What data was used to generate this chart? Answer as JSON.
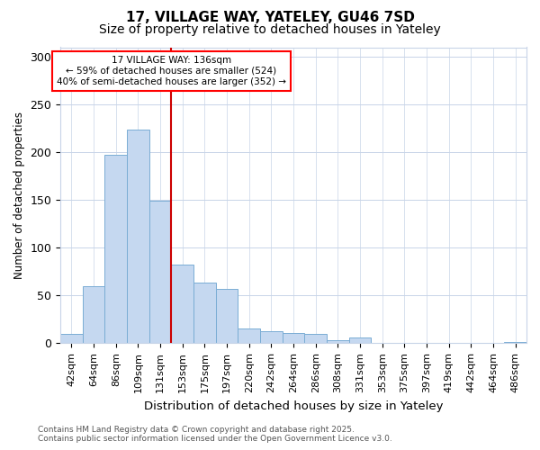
{
  "title": "17, VILLAGE WAY, YATELEY, GU46 7SD",
  "subtitle": "Size of property relative to detached houses in Yateley",
  "xlabel": "Distribution of detached houses by size in Yateley",
  "ylabel": "Number of detached properties",
  "annotation_line1": "17 VILLAGE WAY: 136sqm",
  "annotation_line2": "← 59% of detached houses are smaller (524)",
  "annotation_line3": "40% of semi-detached houses are larger (352) →",
  "footer_line1": "Contains HM Land Registry data © Crown copyright and database right 2025.",
  "footer_line2": "Contains public sector information licensed under the Open Government Licence v3.0.",
  "categories": [
    "42sqm",
    "64sqm",
    "86sqm",
    "109sqm",
    "131sqm",
    "153sqm",
    "175sqm",
    "197sqm",
    "220sqm",
    "242sqm",
    "264sqm",
    "286sqm",
    "308sqm",
    "331sqm",
    "353sqm",
    "375sqm",
    "397sqm",
    "419sqm",
    "442sqm",
    "464sqm",
    "486sqm"
  ],
  "values": [
    10,
    60,
    197,
    224,
    149,
    82,
    63,
    57,
    15,
    13,
    11,
    10,
    3,
    6,
    0,
    0,
    0,
    0,
    0,
    0,
    1
  ],
  "bar_color": "#c5d8f0",
  "bar_edge_color": "#7aadd4",
  "red_line_index": 4,
  "red_line_color": "#cc0000",
  "ylim": [
    0,
    310
  ],
  "yticks": [
    0,
    50,
    100,
    150,
    200,
    250,
    300
  ],
  "background_color": "#ffffff",
  "plot_background": "#ffffff",
  "grid_color": "#c8d4e8",
  "title_fontsize": 11,
  "subtitle_fontsize": 10,
  "xlabel_fontsize": 9.5,
  "ylabel_fontsize": 8.5,
  "tick_fontsize": 8,
  "annotation_fontsize": 7.5,
  "footer_fontsize": 6.5
}
